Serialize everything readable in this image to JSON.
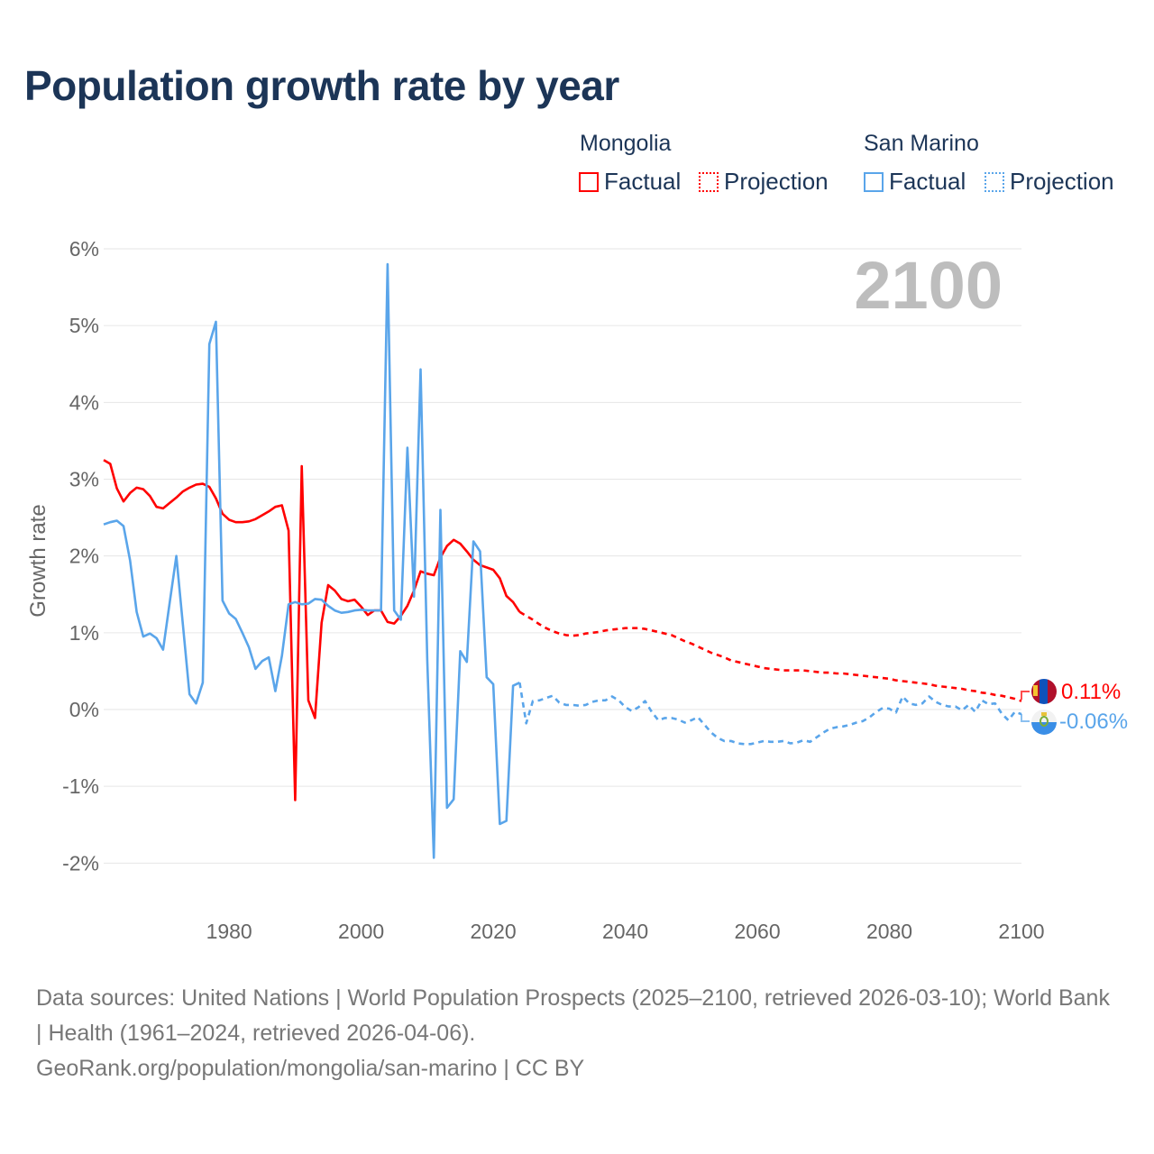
{
  "title": "Population growth rate by year",
  "legend": {
    "groups": [
      {
        "country": "Mongolia",
        "factual": "Factual",
        "projection": "Projection",
        "color": "#ff0000"
      },
      {
        "country": "San Marino",
        "factual": "Factual",
        "projection": "Projection",
        "color": "#5aa5ea"
      }
    ]
  },
  "year_watermark": "2100",
  "end_labels": {
    "mongolia": "0.11%",
    "san_marino": "-0.06%"
  },
  "footer": {
    "sources": "Data sources: United Nations | World Population Prospects (2025–2100, retrieved 2026-03-10); World Bank | Health (1961–2024, retrieved 2026-04-06).",
    "attribution": "GeoRank.org/population/mongolia/san-marino | CC BY"
  },
  "chart_data": {
    "type": "line",
    "title": "Population growth rate by year",
    "xlabel": "",
    "ylabel": "Growth rate",
    "xlim": [
      1961,
      2100
    ],
    "ylim": [
      -2,
      6
    ],
    "grid": true,
    "legend_position": "top-right",
    "x_ticks": [
      1980,
      2000,
      2020,
      2040,
      2060,
      2080,
      2100
    ],
    "y_ticks": [
      {
        "value": 6,
        "label": "6%"
      },
      {
        "value": 5,
        "label": "5%"
      },
      {
        "value": 4,
        "label": "4%"
      },
      {
        "value": 3,
        "label": "3%"
      },
      {
        "value": 2,
        "label": "2%"
      },
      {
        "value": 1,
        "label": "1%"
      },
      {
        "value": 0,
        "label": "0%"
      },
      {
        "value": -1,
        "label": "-1%"
      },
      {
        "value": -2,
        "label": "-2%"
      }
    ],
    "series": [
      {
        "name": "Mongolia Factual",
        "color": "#ff0000",
        "dashed": false,
        "x_start": 1961,
        "values": [
          3.25,
          3.2,
          2.88,
          2.71,
          2.82,
          2.89,
          2.87,
          2.78,
          2.64,
          2.62,
          2.69,
          2.76,
          2.84,
          2.89,
          2.93,
          2.94,
          2.9,
          2.75,
          2.55,
          2.47,
          2.44,
          2.44,
          2.45,
          2.48,
          2.53,
          2.58,
          2.64,
          2.66,
          2.33,
          -1.18,
          3.17,
          0.12,
          -0.11,
          1.13,
          1.62,
          1.55,
          1.44,
          1.41,
          1.43,
          1.34,
          1.23,
          1.29,
          1.29,
          1.14,
          1.12,
          1.22,
          1.35,
          1.55,
          1.8,
          1.77,
          1.75,
          1.98,
          2.13,
          2.21,
          2.16,
          2.06,
          1.95,
          1.88,
          1.85,
          1.82,
          1.71,
          1.48,
          1.4,
          1.27
        ]
      },
      {
        "name": "Mongolia Projection",
        "color": "#ff0000",
        "dashed": true,
        "x_start": 2024,
        "values": [
          1.27,
          1.22,
          1.17,
          1.11,
          1.06,
          1.02,
          0.99,
          0.97,
          0.96,
          0.97,
          0.99,
          1.0,
          1.01,
          1.03,
          1.04,
          1.05,
          1.06,
          1.06,
          1.06,
          1.05,
          1.03,
          1.01,
          0.99,
          0.97,
          0.93,
          0.89,
          0.86,
          0.82,
          0.78,
          0.74,
          0.71,
          0.68,
          0.64,
          0.62,
          0.6,
          0.58,
          0.56,
          0.54,
          0.53,
          0.52,
          0.51,
          0.51,
          0.51,
          0.51,
          0.5,
          0.49,
          0.48,
          0.48,
          0.47,
          0.47,
          0.46,
          0.45,
          0.44,
          0.43,
          0.42,
          0.41,
          0.4,
          0.38,
          0.37,
          0.36,
          0.35,
          0.34,
          0.33,
          0.31,
          0.3,
          0.29,
          0.28,
          0.27,
          0.25,
          0.24,
          0.22,
          0.21,
          0.19,
          0.18,
          0.16,
          0.14,
          0.11
        ]
      },
      {
        "name": "San Marino Factual",
        "color": "#5aa5ea",
        "dashed": false,
        "x_start": 1961,
        "values": [
          2.41,
          2.44,
          2.46,
          2.39,
          1.94,
          1.27,
          0.95,
          0.99,
          0.93,
          0.78,
          1.39,
          2.0,
          1.1,
          0.2,
          0.08,
          0.35,
          4.76,
          5.05,
          1.42,
          1.25,
          1.18,
          1.0,
          0.81,
          0.53,
          0.63,
          0.68,
          0.24,
          0.7,
          1.37,
          1.4,
          1.37,
          1.38,
          1.44,
          1.43,
          1.35,
          1.29,
          1.26,
          1.27,
          1.29,
          1.3,
          1.29,
          1.29,
          1.29,
          5.8,
          1.29,
          1.17,
          3.41,
          1.47,
          4.43,
          0.65,
          -1.93,
          2.6,
          -1.28,
          -1.17,
          0.76,
          0.62,
          2.19,
          2.06,
          0.42,
          0.33,
          -1.49,
          -1.45,
          0.31,
          0.35
        ]
      },
      {
        "name": "San Marino Projection",
        "color": "#5aa5ea",
        "dashed": true,
        "x_start": 2024,
        "values": [
          0.35,
          -0.18,
          0.11,
          0.12,
          0.15,
          0.18,
          0.09,
          0.06,
          0.06,
          0.05,
          0.06,
          0.1,
          0.12,
          0.12,
          0.17,
          0.12,
          0.03,
          -0.02,
          0.03,
          0.11,
          -0.03,
          -0.14,
          -0.11,
          -0.11,
          -0.13,
          -0.17,
          -0.14,
          -0.1,
          -0.2,
          -0.3,
          -0.37,
          -0.41,
          -0.41,
          -0.44,
          -0.45,
          -0.45,
          -0.43,
          -0.41,
          -0.42,
          -0.42,
          -0.41,
          -0.44,
          -0.43,
          -0.4,
          -0.42,
          -0.36,
          -0.3,
          -0.25,
          -0.23,
          -0.22,
          -0.2,
          -0.17,
          -0.15,
          -0.1,
          -0.03,
          0.02,
          0.01,
          -0.04,
          0.17,
          0.08,
          0.06,
          0.08,
          0.17,
          0.1,
          0.06,
          0.04,
          0.04,
          -0.01,
          0.06,
          -0.03,
          0.12,
          0.07,
          0.08,
          -0.05,
          -0.14,
          -0.03,
          -0.06
        ]
      }
    ]
  }
}
